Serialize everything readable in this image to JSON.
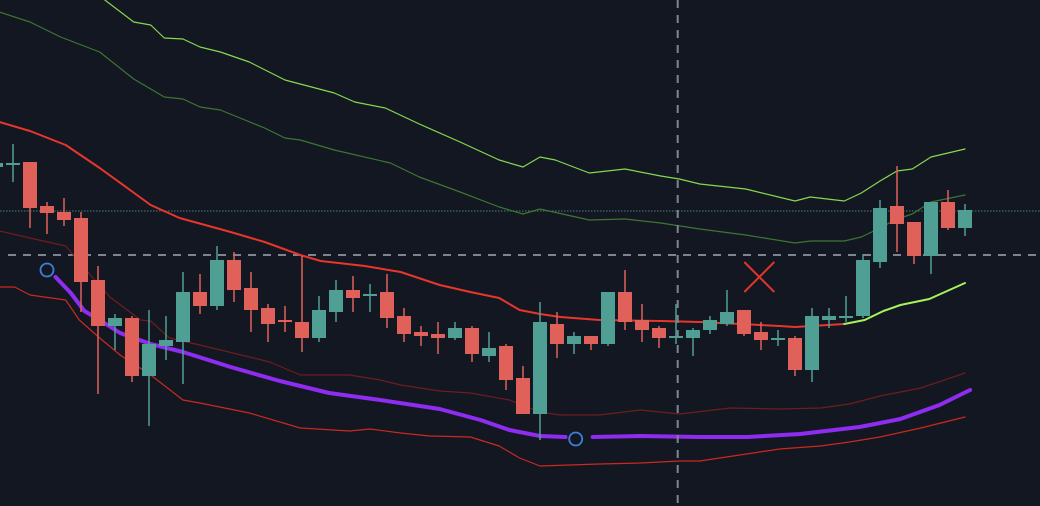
{
  "chart_data": {
    "type": "candlestick",
    "title": "",
    "xlabel": "",
    "ylabel": "",
    "grid": false,
    "colors": {
      "background": "#131722",
      "up": "#4f9f95",
      "down": "#e0605a",
      "upper_band_outer": "#86d84f",
      "upper_band_inner": "#3e7530",
      "basis": "#e8362b",
      "basis_rising": "#a4f55a",
      "lower_band_inner": "#6e1d1d",
      "lower_band_outer": "#c92a1f",
      "trend": "#8e2cf0",
      "marker_circle": "#3d7fd9",
      "cross_marker": "#e0352a",
      "dotted_level": "#3f6b6b",
      "dashed_level": "#7d8594"
    },
    "candles_ohlc": [
      [
        339,
        344,
        338,
        343
      ],
      [
        341,
        362,
        324,
        343
      ],
      [
        344,
        344,
        278,
        298
      ],
      [
        300,
        304,
        272,
        293
      ],
      [
        294,
        308,
        280,
        286
      ],
      [
        288,
        294,
        194,
        224
      ],
      [
        226,
        240,
        112,
        180
      ],
      [
        180,
        192,
        156,
        188
      ],
      [
        188,
        190,
        124,
        130
      ],
      [
        130,
        196,
        80,
        162
      ],
      [
        160,
        190,
        146,
        166
      ],
      [
        164,
        234,
        122,
        214
      ],
      [
        214,
        232,
        192,
        200
      ],
      [
        200,
        260,
        196,
        246
      ],
      [
        246,
        254,
        204,
        216
      ],
      [
        218,
        234,
        174,
        196
      ],
      [
        198,
        202,
        164,
        182
      ],
      [
        186,
        200,
        174,
        184
      ],
      [
        184,
        250,
        154,
        168
      ],
      [
        168,
        210,
        164,
        196
      ],
      [
        194,
        226,
        184,
        216
      ],
      [
        216,
        230,
        194,
        208
      ],
      [
        210,
        222,
        194,
        212
      ],
      [
        214,
        232,
        178,
        188
      ],
      [
        190,
        198,
        164,
        172
      ],
      [
        174,
        180,
        160,
        170
      ],
      [
        172,
        184,
        152,
        168
      ],
      [
        168,
        184,
        166,
        178
      ],
      [
        178,
        180,
        144,
        152
      ],
      [
        150,
        174,
        144,
        158
      ],
      [
        160,
        162,
        116,
        126
      ],
      [
        128,
        140,
        92,
        92
      ],
      [
        92,
        204,
        66,
        184
      ],
      [
        182,
        194,
        148,
        162
      ],
      [
        162,
        174,
        152,
        170
      ],
      [
        170,
        170,
        156,
        162
      ],
      [
        162,
        214,
        160,
        214
      ],
      [
        214,
        236,
        176,
        184
      ],
      [
        186,
        202,
        164,
        176
      ],
      [
        178,
        180,
        158,
        168
      ],
      [
        168,
        202,
        162,
        170
      ],
      [
        168,
        178,
        150,
        176
      ],
      [
        176,
        190,
        172,
        186
      ],
      [
        182,
        216,
        180,
        194
      ],
      [
        196,
        196,
        170,
        172
      ],
      [
        174,
        184,
        156,
        166
      ],
      [
        166,
        176,
        160,
        168
      ],
      [
        168,
        170,
        130,
        136
      ],
      [
        136,
        198,
        124,
        190
      ],
      [
        186,
        198,
        178,
        190
      ],
      [
        188,
        210,
        184,
        190
      ],
      [
        190,
        252,
        188,
        246
      ],
      [
        244,
        306,
        238,
        298
      ],
      [
        300,
        340,
        254,
        282
      ],
      [
        284,
        284,
        242,
        250
      ],
      [
        250,
        304,
        232,
        304
      ],
      [
        304,
        316,
        276,
        278
      ],
      [
        278,
        302,
        270,
        296
      ]
    ],
    "lines": [
      {
        "role": "upper_band_outer",
        "width": 1.2,
        "points": [
          [
            6.4,
            506
          ],
          [
            8.1,
            484
          ],
          [
            9.1,
            481
          ],
          [
            9.9,
            468
          ],
          [
            11,
            467
          ],
          [
            12,
            459
          ],
          [
            13.2,
            454
          ],
          [
            14.9,
            444
          ],
          [
            17,
            426
          ],
          [
            19.9,
            413
          ],
          [
            21.1,
            404
          ],
          [
            22.9,
            398
          ],
          [
            24.9,
            382
          ],
          [
            27.3,
            364
          ],
          [
            29.6,
            346
          ],
          [
            31,
            339
          ],
          [
            32,
            349
          ],
          [
            32.9,
            346
          ],
          [
            34.9,
            333
          ],
          [
            37,
            337
          ],
          [
            39.1,
            330
          ],
          [
            40.2,
            327
          ],
          [
            41.4,
            322
          ],
          [
            44.1,
            317
          ],
          [
            47,
            305
          ],
          [
            47.9,
            309
          ],
          [
            49.9,
            305
          ],
          [
            50.9,
            313
          ],
          [
            52,
            325
          ],
          [
            53,
            335
          ],
          [
            53.9,
            337
          ],
          [
            55,
            349
          ],
          [
            57,
            357
          ]
        ]
      },
      {
        "role": "upper_band_inner",
        "width": 1.2,
        "points": [
          [
            0.2,
            494
          ],
          [
            2,
            484
          ],
          [
            3.8,
            469
          ],
          [
            6.1,
            454
          ],
          [
            8.1,
            427
          ],
          [
            9.9,
            409
          ],
          [
            11,
            407
          ],
          [
            12,
            399
          ],
          [
            13.2,
            396
          ],
          [
            15.8,
            378
          ],
          [
            17,
            368
          ],
          [
            17.9,
            366
          ],
          [
            19.9,
            356
          ],
          [
            23.2,
            343
          ],
          [
            24.9,
            329
          ],
          [
            27.3,
            314
          ],
          [
            29.6,
            299
          ],
          [
            31,
            292
          ],
          [
            32,
            297
          ],
          [
            34.9,
            286
          ],
          [
            37,
            287
          ],
          [
            39.1,
            283
          ],
          [
            41.4,
            277
          ],
          [
            44.1,
            271
          ],
          [
            47,
            263
          ],
          [
            47.9,
            265
          ],
          [
            49.9,
            265
          ],
          [
            50.9,
            269
          ],
          [
            52,
            278
          ],
          [
            53,
            287
          ],
          [
            53.9,
            292
          ],
          [
            55,
            304
          ],
          [
            57,
            311
          ]
        ]
      },
      {
        "role": "basis",
        "width": 2,
        "points": [
          [
            0.2,
            384
          ],
          [
            2,
            375
          ],
          [
            4.1,
            361
          ],
          [
            6.1,
            338
          ],
          [
            9.1,
            301
          ],
          [
            10.8,
            288
          ],
          [
            13.8,
            274
          ],
          [
            15.8,
            264
          ],
          [
            17.9,
            251
          ],
          [
            19.1,
            245
          ],
          [
            21.7,
            240
          ],
          [
            23.8,
            234
          ],
          [
            26.1,
            221
          ],
          [
            27.9,
            214
          ],
          [
            29.6,
            208
          ],
          [
            30.8,
            196
          ],
          [
            32,
            192
          ],
          [
            33.2,
            189
          ],
          [
            35.5,
            186
          ],
          [
            39.1,
            185
          ],
          [
            41.4,
            184
          ],
          [
            43.8,
            182
          ],
          [
            46.1,
            180
          ],
          [
            47,
            179
          ],
          [
            49.9,
            182
          ]
        ]
      },
      {
        "role": "basis_rising",
        "width": 2,
        "points": [
          [
            49.9,
            182
          ],
          [
            51.1,
            186
          ],
          [
            52.2,
            195
          ],
          [
            53.2,
            201
          ],
          [
            54.9,
            207
          ],
          [
            57,
            223
          ]
        ]
      },
      {
        "role": "lower_band_inner",
        "width": 1.2,
        "points": [
          [
            0.2,
            275
          ],
          [
            2,
            268
          ],
          [
            4.1,
            260
          ],
          [
            5.5,
            232
          ],
          [
            6.7,
            209
          ],
          [
            8.5,
            186
          ],
          [
            9.1,
            185
          ],
          [
            10.2,
            168
          ],
          [
            12,
            161
          ],
          [
            16.1,
            144
          ],
          [
            17.9,
            131
          ],
          [
            20.8,
            131
          ],
          [
            22.6,
            126
          ],
          [
            23.8,
            121
          ],
          [
            26.1,
            115
          ],
          [
            27.9,
            113
          ],
          [
            30.2,
            106
          ],
          [
            32,
            94
          ],
          [
            33.2,
            91
          ],
          [
            35.5,
            91
          ],
          [
            37.9,
            96
          ],
          [
            40.2,
            92
          ],
          [
            43.2,
            98
          ],
          [
            46.1,
            97
          ],
          [
            48.5,
            98
          ],
          [
            50.2,
            102
          ],
          [
            52,
            110
          ],
          [
            54.4,
            118
          ],
          [
            57,
            133
          ]
        ]
      },
      {
        "role": "lower_band_outer",
        "width": 1.2,
        "points": [
          [
            0.2,
            219
          ],
          [
            1.1,
            219
          ],
          [
            2,
            211
          ],
          [
            4.1,
            206
          ],
          [
            4.9,
            186
          ],
          [
            6.1,
            168
          ],
          [
            7.3,
            151
          ],
          [
            9.1,
            131
          ],
          [
            11,
            106
          ],
          [
            12,
            103
          ],
          [
            14.9,
            93
          ],
          [
            17.9,
            78
          ],
          [
            20.8,
            75
          ],
          [
            22,
            77
          ],
          [
            23.8,
            73
          ],
          [
            25.5,
            70
          ],
          [
            27.9,
            69
          ],
          [
            29.6,
            60
          ],
          [
            30.8,
            48
          ],
          [
            32,
            40
          ],
          [
            35.5,
            42
          ],
          [
            37.9,
            43
          ],
          [
            40.2,
            45
          ],
          [
            41.4,
            45
          ],
          [
            46.1,
            57
          ],
          [
            48.5,
            60
          ],
          [
            50.2,
            64
          ],
          [
            52,
            69
          ],
          [
            54.4,
            78
          ],
          [
            57,
            89
          ]
        ]
      },
      {
        "role": "trend",
        "width": 4,
        "points": [
          [
            3.5,
            229
          ],
          [
            4.4,
            213
          ],
          [
            5.2,
            195
          ],
          [
            6.1,
            186
          ],
          [
            7.3,
            173
          ],
          [
            9.1,
            162
          ],
          [
            11,
            154
          ],
          [
            13.8,
            139
          ],
          [
            16.7,
            125
          ],
          [
            19.6,
            113
          ],
          [
            22.6,
            106
          ],
          [
            26.1,
            97
          ],
          [
            28.5,
            86
          ],
          [
            30.2,
            76
          ],
          [
            32,
            70
          ],
          [
            33.5,
            69
          ]
        ]
      },
      {
        "role": "trend",
        "width": 4,
        "points": [
          [
            35.1,
            69
          ],
          [
            37.9,
            70
          ],
          [
            41.4,
            69
          ],
          [
            44.2,
            69
          ],
          [
            47.3,
            72
          ],
          [
            50.8,
            79
          ],
          [
            53.2,
            87
          ],
          [
            55.5,
            101
          ],
          [
            57.3,
            116
          ]
        ]
      }
    ],
    "markers": [
      {
        "type": "circle",
        "bar": 3,
        "price": 236
      },
      {
        "type": "circle",
        "bar": 34.1,
        "price": 67
      },
      {
        "type": "cross",
        "bar": 44.9,
        "price": 229
      }
    ],
    "levels": [
      {
        "style": "dotted",
        "price": 295
      },
      {
        "style": "dashed",
        "price": 251
      }
    ],
    "crosshair_bar": 40.1
  }
}
